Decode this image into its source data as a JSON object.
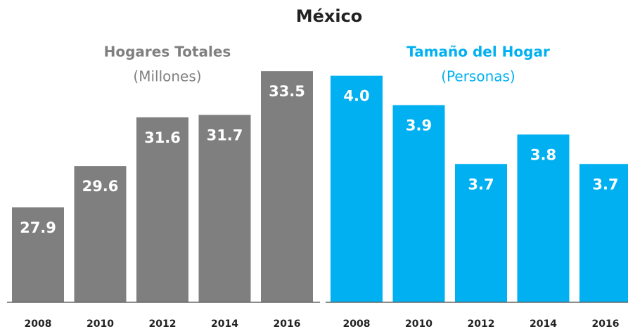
{
  "title": "México",
  "chart_data": [
    {
      "type": "bar",
      "title": "Hogares Totales",
      "subtitle": "(Millones)",
      "categories": [
        "2008",
        "2010",
        "2012",
        "2014",
        "2016"
      ],
      "values": [
        27.9,
        29.6,
        31.6,
        31.7,
        33.5
      ],
      "color": "#7f7f7f",
      "title_color": "#7f7f7f",
      "ylim": [
        24,
        34.4
      ]
    },
    {
      "type": "bar",
      "title": "Tamaño del Hogar",
      "subtitle": "(Personas)",
      "categories": [
        "2008",
        "2010",
        "2012",
        "2014",
        "2016"
      ],
      "values": [
        4.0,
        3.9,
        3.7,
        3.8,
        3.7
      ],
      "value_labels": [
        "4.0",
        "3.9",
        "3.7",
        "3.8",
        "3.7"
      ],
      "color": "#00b0f0",
      "title_color": "#00b0f0",
      "ylim": [
        3.23,
        4.09
      ]
    }
  ]
}
